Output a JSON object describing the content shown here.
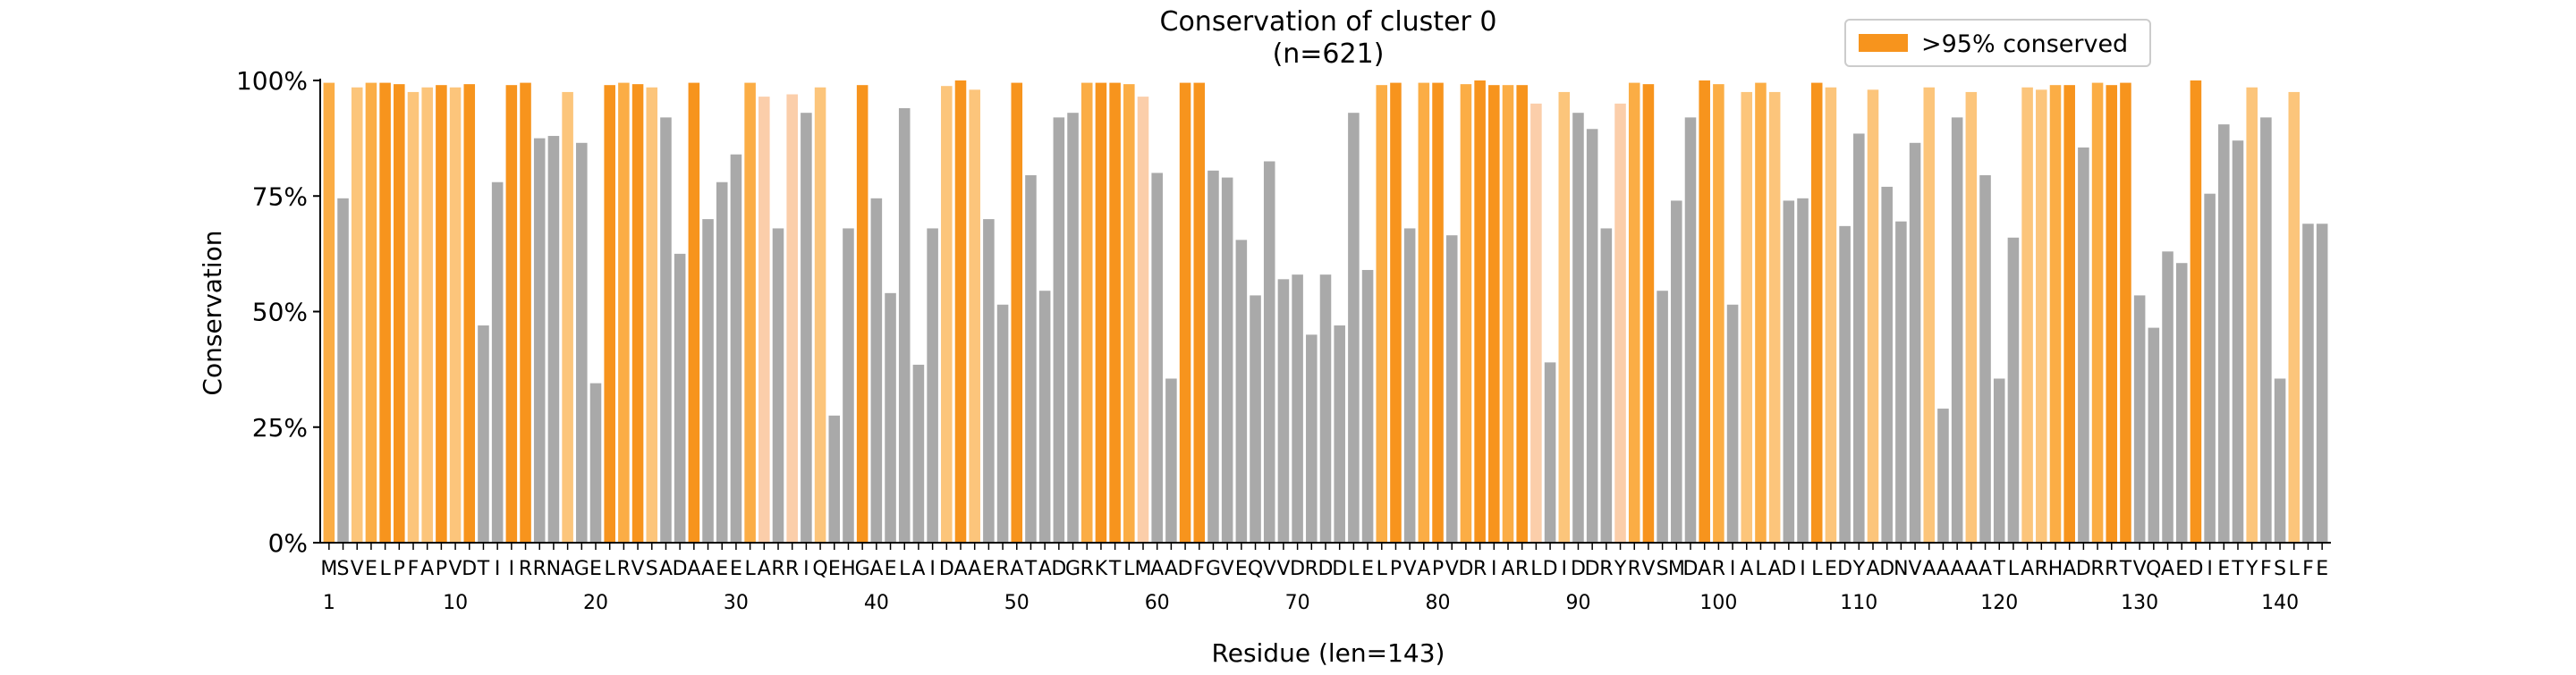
{
  "chart_data": {
    "type": "bar",
    "title": "Conservation of cluster 0",
    "subtitle": "(n=621)",
    "xlabel": "Residue (len=143)",
    "ylabel": "Conservation",
    "ylim": [
      0,
      100
    ],
    "yticks": [
      "0%",
      "25%",
      "50%",
      "75%",
      "100%"
    ],
    "xticks": [
      1,
      10,
      20,
      30,
      40,
      50,
      60,
      70,
      80,
      90,
      100,
      110,
      120,
      130,
      140
    ],
    "grid": false,
    "legend": {
      "placement": "top-right",
      "entries": [
        {
          "label": ">95% conserved",
          "color": "#f7941d"
        }
      ]
    },
    "sequence": "MSVELPFAPVDTIIRRNAGELRVSADAAEELARRIQEHGAELAIDAAERATADGRKTLMAADFGVEQVVDRDDLELPVAPVDRIARLDIDDRYRVSMDARIALADILEDYADNVAAAAATLARHADRRTVQAEDIETYFSLFE",
    "values": [
      99.5,
      74.5,
      98.5,
      99.5,
      99.5,
      99.2,
      97.5,
      98.5,
      99,
      98.5,
      99.2,
      47,
      78,
      99,
      99.5,
      87.5,
      88,
      97.5,
      86.5,
      34.5,
      99,
      99.5,
      99.2,
      98.5,
      92,
      62.5,
      99.5,
      70,
      78,
      84,
      99.5,
      96.5,
      68,
      97,
      93,
      98.5,
      27.5,
      68,
      99,
      74.5,
      54,
      94,
      38.5,
      68,
      98.8,
      100,
      98,
      70,
      51.5,
      99.5,
      79.5,
      54.5,
      92,
      93,
      99.5,
      99.5,
      99.5,
      99.2,
      96.5,
      80,
      35.5,
      99.5,
      99.5,
      80.5,
      79,
      65.5,
      53.5,
      82.5,
      57,
      58,
      45,
      58,
      47,
      93,
      59,
      99,
      99.5,
      68,
      99.5,
      99.5,
      66.5,
      99.2,
      100,
      99,
      99,
      99,
      95,
      39,
      97.5,
      93,
      89.5,
      68,
      95,
      99.5,
      99.2,
      54.5,
      74,
      92,
      100,
      99.2,
      51.5,
      97.5,
      99.5,
      97.5,
      74,
      74.5,
      99.5,
      98.5,
      68.5,
      88.5,
      98,
      77,
      69.5,
      86.5,
      98.5,
      29,
      92,
      97.5,
      79.5,
      35.5,
      66,
      98.5,
      98,
      99,
      99,
      85.5,
      99.5,
      99,
      99.5,
      53.5,
      46.5,
      63,
      60.5,
      100,
      75.5,
      90.5,
      87,
      98.5,
      92,
      35.5,
      97.5,
      69,
      69
    ],
    "bar_colors": {
      "gray": "#a9a9a9",
      "light": "#fbceaa",
      "medium": "#fcc57b",
      "strong": "#fbad45",
      "full": "#f7941d"
    }
  }
}
